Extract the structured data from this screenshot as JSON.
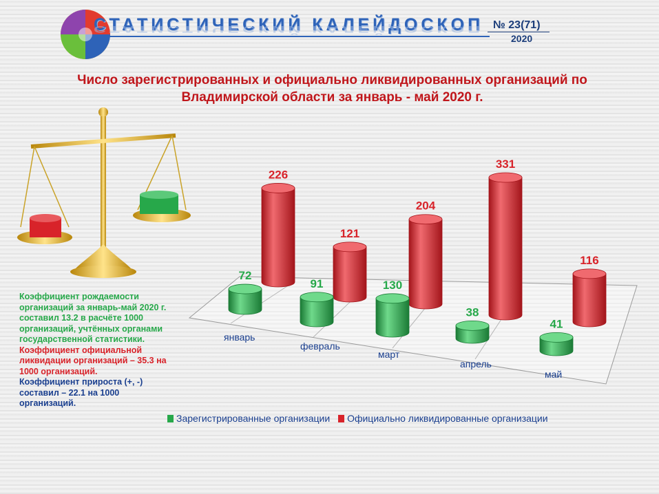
{
  "header": {
    "title": "СТАТИСТИЧЕСКИЙ КАЛЕЙДОСКОП",
    "issue": "№ 23(71)",
    "year": "2020"
  },
  "side_text": {
    "birth": "Коэффициент рождаемости организаций за январь-май 2020 г. составил 13.2 в расчёте 1000 организаций, учтённых органами государственной статистики.",
    "liquidation": "Коэффициент официальной ликвидации организаций – 35.3 на 1000 организаций.",
    "growth": "Коэффициент прироста (+, -) составил – 22.1 на 1000 организаций."
  },
  "colors": {
    "registered": "#27a84a",
    "liquidated": "#d8232a",
    "title": "#c0161b",
    "text_blue": "#1a3f8f"
  },
  "chart_data": {
    "type": "bar",
    "title": "Число зарегистрированных и официально ликвидированных организаций по Владимирской области за январь - май 2020 г.",
    "categories": [
      "январь",
      "февраль",
      "март",
      "апрель",
      "май"
    ],
    "series": [
      {
        "name": "Зарегистрированные организации",
        "values": [
          72,
          91,
          130,
          38,
          41
        ]
      },
      {
        "name": "Официально ликвидированные организации",
        "values": [
          226,
          121,
          204,
          331,
          116
        ]
      }
    ],
    "ylim": [
      0,
      331
    ],
    "grid": false,
    "legend": "bottom",
    "style": "3d-cylinder"
  }
}
